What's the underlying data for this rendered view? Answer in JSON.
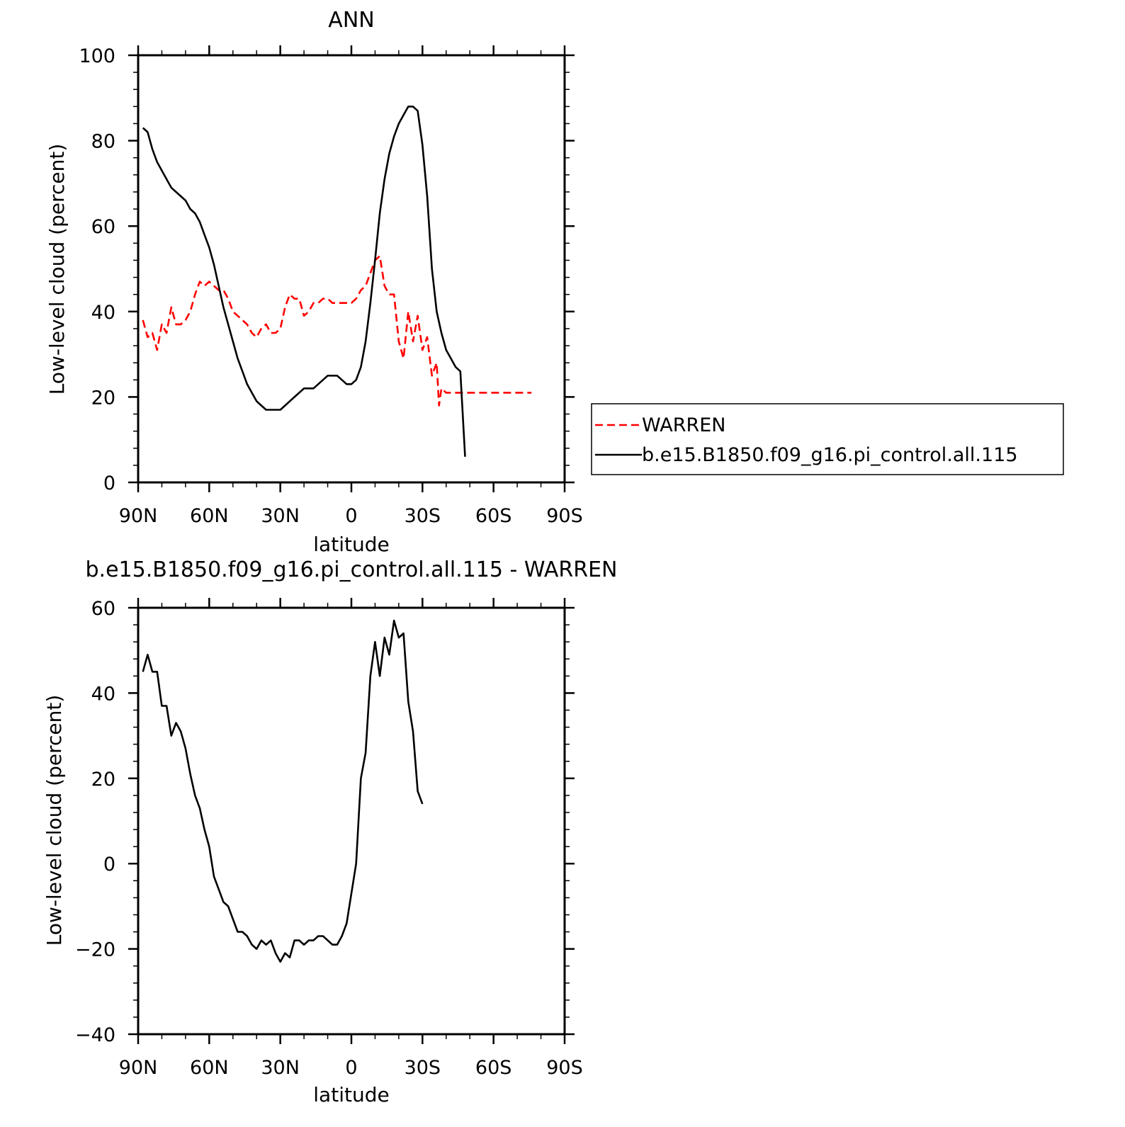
{
  "colors": {
    "model": "#000000",
    "obs": "#ff0000",
    "background": "#ffffff"
  },
  "chart_data": [
    {
      "type": "line",
      "title": "ANN",
      "xlabel": "latitude",
      "ylabel": "Low-level cloud (percent)",
      "xlim": [
        90,
        -90
      ],
      "ylim": [
        0,
        100
      ],
      "yticks": [
        "0",
        "20",
        "40",
        "60",
        "80",
        "100"
      ],
      "xtick_values": [
        90,
        60,
        30,
        0,
        -30,
        -60,
        -90
      ],
      "xtick_labels": [
        "90N",
        "60N",
        "30N",
        "0",
        "30S",
        "60S",
        "90S"
      ],
      "grid": false,
      "legend_position": "right",
      "series": [
        {
          "name": "WARREN",
          "style": "dashed",
          "color": "#ff0000",
          "x": [
            88,
            86,
            84,
            82,
            80,
            78,
            76,
            74,
            72,
            70,
            68,
            66,
            64,
            62,
            60,
            58,
            56,
            54,
            52,
            50,
            48,
            46,
            44,
            42,
            40,
            38,
            36,
            34,
            32,
            30,
            28,
            26,
            24,
            22,
            20,
            18,
            16,
            14,
            12,
            10,
            8,
            6,
            4,
            2,
            0,
            -2,
            -4,
            -6,
            -8,
            -10,
            -12,
            -14,
            -16,
            -18,
            -20,
            -22,
            -24,
            -26,
            -28,
            -30,
            -32,
            -34,
            -36,
            -37,
            -38,
            -40,
            -42,
            -44,
            -46,
            -48,
            -50,
            -52,
            -54,
            -56,
            -58,
            -60,
            -62,
            -64,
            -66,
            -68,
            -70,
            -72,
            -74,
            -76
          ],
          "y": [
            38,
            34,
            35,
            31,
            37,
            35,
            41,
            37,
            37,
            38,
            40,
            44,
            47,
            46,
            47,
            46,
            45,
            45,
            43,
            40,
            39,
            38,
            37,
            35,
            34,
            36,
            37,
            35,
            35,
            36,
            41,
            44,
            43,
            43,
            39,
            40,
            42,
            42,
            43,
            43,
            42,
            42,
            42,
            42,
            42,
            43,
            45,
            46,
            49,
            52,
            53,
            46,
            44,
            44,
            33,
            29,
            40,
            33,
            39,
            31,
            34,
            25,
            28,
            18,
            22,
            21,
            21,
            21,
            21,
            21,
            21,
            21,
            21,
            21,
            21,
            21,
            21,
            21,
            21,
            21,
            21,
            21,
            21,
            21
          ]
        },
        {
          "name": "b.e15.B1850.f09_g16.pi_control.all.115",
          "style": "solid",
          "color": "#000000",
          "x": [
            88,
            86,
            84,
            82,
            80,
            78,
            76,
            74,
            72,
            70,
            68,
            66,
            64,
            62,
            60,
            58,
            56,
            54,
            52,
            50,
            48,
            46,
            44,
            42,
            40,
            38,
            36,
            34,
            32,
            30,
            28,
            26,
            24,
            22,
            20,
            18,
            16,
            14,
            12,
            10,
            8,
            6,
            4,
            2,
            0,
            -2,
            -4,
            -6,
            -8,
            -10,
            -12,
            -14,
            -16,
            -18,
            -20,
            -22,
            -24,
            -26,
            -28,
            -30,
            -32,
            -34,
            -36,
            -38,
            -40,
            -42,
            -44,
            -46,
            -48,
            -50,
            -52,
            -54,
            -56,
            -58,
            -60,
            -62,
            -64,
            -66,
            -68,
            -70,
            -72,
            -74,
            -76,
            -78,
            -80,
            -82,
            -84,
            -86,
            -88
          ],
          "y": [
            83,
            82,
            78,
            75,
            73,
            71,
            69,
            68,
            67,
            66,
            64,
            63,
            61,
            58,
            55,
            51,
            46,
            41,
            37,
            33,
            29,
            26,
            23,
            21,
            19,
            18,
            17,
            17,
            17,
            17,
            18,
            19,
            20,
            21,
            22,
            22,
            22,
            23,
            24,
            25,
            25,
            25,
            24,
            23,
            23,
            24,
            27,
            33,
            42,
            52,
            63,
            71,
            77,
            81,
            84,
            86,
            88,
            88,
            87,
            79,
            67,
            50,
            40,
            35,
            31,
            29,
            27,
            26,
            6,
            null,
            null,
            null,
            null,
            null,
            null,
            null,
            null,
            null,
            null,
            null,
            null,
            null,
            null,
            null,
            null,
            null,
            null,
            null,
            null
          ]
        }
      ]
    },
    {
      "type": "line",
      "title": "b.e15.B1850.f09_g16.pi_control.all.115 - WARREN",
      "xlabel": "latitude",
      "ylabel": "Low-level cloud (percent)",
      "xlim": [
        90,
        -90
      ],
      "ylim": [
        -40,
        60
      ],
      "yticks": [
        "-40",
        "-20",
        "0",
        "20",
        "40",
        "60"
      ],
      "xtick_values": [
        90,
        60,
        30,
        0,
        -30,
        -60,
        -90
      ],
      "xtick_labels": [
        "90N",
        "60N",
        "30N",
        "0",
        "30S",
        "60S",
        "90S"
      ],
      "grid": false,
      "series": [
        {
          "style": "solid",
          "color": "#000000",
          "x": [
            88,
            86,
            84,
            82,
            80,
            78,
            76,
            74,
            72,
            70,
            68,
            66,
            64,
            62,
            60,
            58,
            56,
            54,
            52,
            50,
            48,
            46,
            44,
            42,
            40,
            38,
            36,
            34,
            32,
            30,
            28,
            26,
            24,
            22,
            20,
            18,
            16,
            14,
            12,
            10,
            8,
            6,
            4,
            2,
            0,
            -2,
            -4,
            -6,
            -8,
            -10,
            -12,
            -14,
            -16,
            -18,
            -20,
            -22,
            -24,
            -26,
            -28,
            -30,
            -32,
            -34,
            -36,
            -38,
            -40,
            -42,
            -44,
            -46,
            -48,
            -50,
            -52,
            -54,
            -56,
            -58,
            -60,
            -62,
            -64,
            -66,
            -68,
            -70,
            -72,
            -74,
            -76
          ],
          "y": [
            45,
            49,
            45,
            45,
            37,
            37,
            30,
            33,
            31,
            27,
            21,
            16,
            13,
            8,
            4,
            -3,
            -6,
            -9,
            -10,
            -13,
            -16,
            -16,
            -17,
            -19,
            -20,
            -18,
            -19,
            -18,
            -21,
            -23,
            -21,
            -22,
            -18,
            -18,
            -19,
            -18,
            -18,
            -17,
            -17,
            -18,
            -19,
            -19,
            -17,
            -14,
            -7,
            0,
            20,
            26,
            44,
            52,
            44,
            53,
            49,
            57,
            53,
            54,
            38,
            31,
            17,
            14,
            null,
            null,
            null,
            null,
            null,
            null,
            null,
            null,
            null,
            null,
            null,
            null,
            null,
            null,
            null,
            null,
            null,
            null,
            null,
            null,
            null,
            null,
            null
          ]
        }
      ]
    }
  ]
}
